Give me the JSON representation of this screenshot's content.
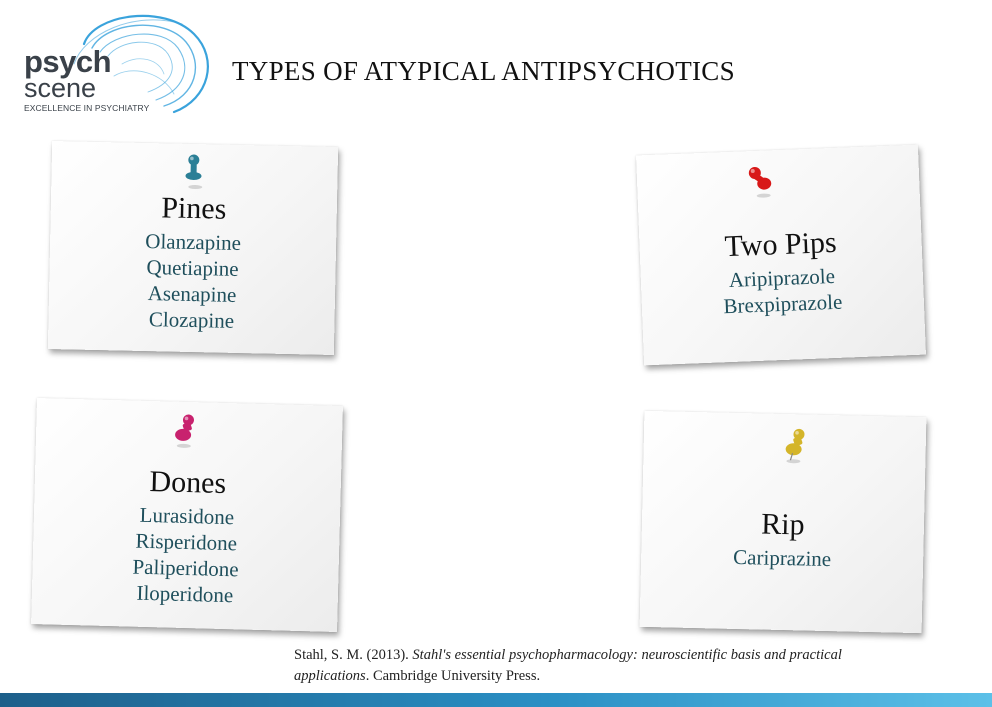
{
  "logo": {
    "brand_top": "psych",
    "brand_bottom": "scene",
    "tagline": "EXCELLENCE IN PSYCHIATRY",
    "swirl_color": "#3aa3dc"
  },
  "page": {
    "title": "TYPES OF ATYPICAL ANTIPSYCHOTICS"
  },
  "notes": [
    {
      "title": "Pines",
      "pin_color": "#2b7f96",
      "items": [
        "Olanzapine",
        "Quetiapine",
        "Asenapine",
        "Clozapine"
      ]
    },
    {
      "title": "Two Pips",
      "pin_color": "#d81818",
      "items": [
        "Aripiprazole",
        "Brexpiprazole"
      ]
    },
    {
      "title": "Dones",
      "pin_color": "#c8226e",
      "items": [
        "Lurasidone",
        "Risperidone",
        "Paliperidone",
        "Iloperidone"
      ]
    },
    {
      "title": "Rip",
      "pin_color": "#d4b52a",
      "items": [
        "Cariprazine"
      ]
    }
  ],
  "citation": {
    "authors": "Stahl, S. M. (2013).",
    "book": "Stahl's essential psychopharmacology: neuroscientific basis and practical applications",
    "publisher": ". Cambridge University Press."
  }
}
